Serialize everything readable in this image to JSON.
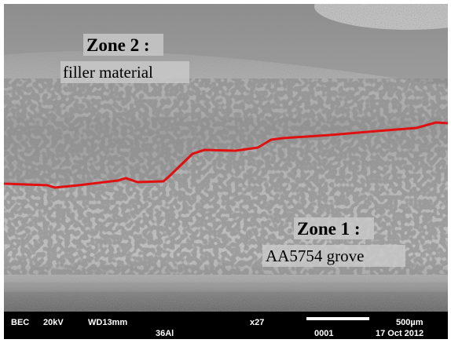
{
  "labels": {
    "zone2": {
      "title": "Zone 2 :",
      "subtitle": "filler material"
    },
    "zone1": {
      "title": "Zone 1 :",
      "subtitle": "AA5754 grove"
    }
  },
  "info_bar": {
    "detector": "BEC",
    "voltage": "20kV",
    "working_distance": "WD13mm",
    "magnification": "x27",
    "scale": "500µm",
    "sample": "36Al",
    "image_number": "0001",
    "date": "17 Oct 2012"
  }
}
